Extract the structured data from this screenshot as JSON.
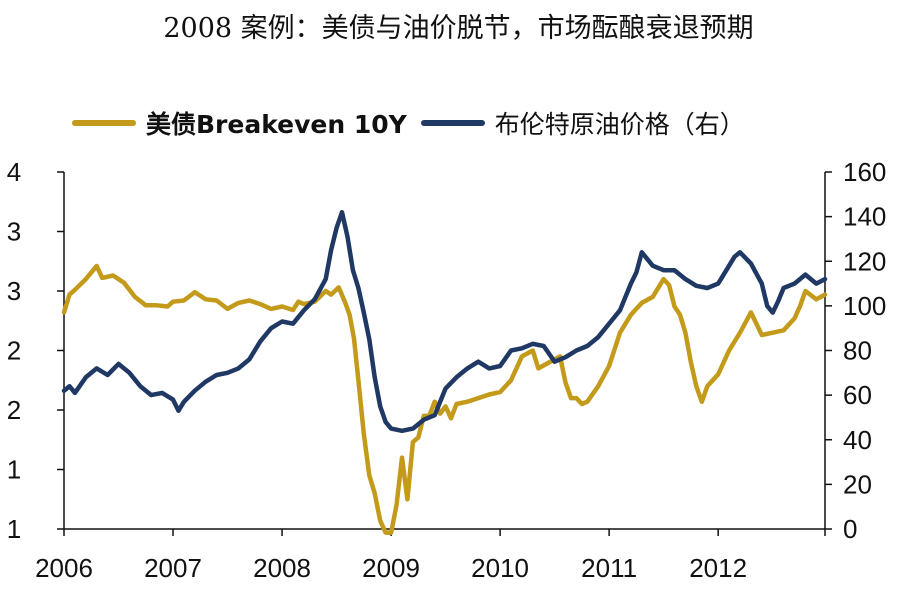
{
  "chart_data": {
    "type": "line",
    "title": "2008 案例：美债与油价脱节，市场酝酿衰退预期",
    "legend_position": "top",
    "x_ticks": [
      "2006",
      "2007",
      "2008",
      "2009",
      "2010",
      "2011",
      "2012"
    ],
    "x_range": [
      2006.0,
      2012.98
    ],
    "y_left": {
      "ticks": [
        "1",
        "1",
        "2",
        "2",
        "3",
        "3",
        "4"
      ],
      "range": [
        0.75,
        3.75
      ]
    },
    "y_right": {
      "ticks": [
        "0",
        "20",
        "40",
        "60",
        "80",
        "100",
        "120",
        "140",
        "160"
      ],
      "range": [
        0,
        160
      ]
    },
    "series": [
      {
        "name": "美债Breakeven 10Y",
        "axis": "left",
        "color": "#C49A1B",
        "x": [
          2006.0,
          2006.05,
          2006.1,
          2006.2,
          2006.3,
          2006.35,
          2006.45,
          2006.55,
          2006.65,
          2006.75,
          2006.85,
          2006.95,
          2007.0,
          2007.1,
          2007.2,
          2007.3,
          2007.4,
          2007.5,
          2007.6,
          2007.7,
          2007.8,
          2007.9,
          2008.0,
          2008.1,
          2008.15,
          2008.2,
          2008.3,
          2008.4,
          2008.45,
          2008.52,
          2008.58,
          2008.62,
          2008.66,
          2008.7,
          2008.75,
          2008.8,
          2008.85,
          2008.9,
          2008.95,
          2009.0,
          2009.05,
          2009.1,
          2009.15,
          2009.2,
          2009.25,
          2009.3,
          2009.35,
          2009.4,
          2009.45,
          2009.5,
          2009.55,
          2009.6,
          2009.7,
          2009.8,
          2009.9,
          2010.0,
          2010.1,
          2010.2,
          2010.3,
          2010.35,
          2010.45,
          2010.55,
          2010.6,
          2010.65,
          2010.7,
          2010.75,
          2010.8,
          2010.9,
          2011.0,
          2011.1,
          2011.2,
          2011.3,
          2011.4,
          2011.5,
          2011.55,
          2011.6,
          2011.65,
          2011.7,
          2011.75,
          2011.8,
          2011.85,
          2011.9,
          2012.0,
          2012.1,
          2012.2,
          2012.3,
          2012.4,
          2012.5,
          2012.6,
          2012.7,
          2012.75,
          2012.8,
          2012.9,
          2012.98
        ],
        "values": [
          2.57,
          2.72,
          2.76,
          2.85,
          2.96,
          2.86,
          2.88,
          2.82,
          2.7,
          2.63,
          2.63,
          2.62,
          2.66,
          2.67,
          2.74,
          2.68,
          2.67,
          2.6,
          2.65,
          2.67,
          2.64,
          2.6,
          2.62,
          2.59,
          2.66,
          2.64,
          2.66,
          2.75,
          2.72,
          2.78,
          2.65,
          2.55,
          2.35,
          2.0,
          1.55,
          1.2,
          1.05,
          0.82,
          0.72,
          0.72,
          0.95,
          1.35,
          1.0,
          1.48,
          1.52,
          1.7,
          1.7,
          1.82,
          1.72,
          1.78,
          1.68,
          1.8,
          1.82,
          1.85,
          1.88,
          1.9,
          2.0,
          2.2,
          2.25,
          2.1,
          2.15,
          2.2,
          1.98,
          1.85,
          1.85,
          1.8,
          1.82,
          1.95,
          2.12,
          2.4,
          2.55,
          2.65,
          2.7,
          2.85,
          2.8,
          2.62,
          2.55,
          2.4,
          2.15,
          1.95,
          1.82,
          1.95,
          2.05,
          2.25,
          2.4,
          2.57,
          2.38,
          2.4,
          2.42,
          2.52,
          2.62,
          2.75,
          2.68,
          2.72
        ]
      },
      {
        "name": "布伦特原油价格（右）",
        "axis": "right",
        "color": "#1F3864",
        "x": [
          2006.0,
          2006.05,
          2006.1,
          2006.2,
          2006.3,
          2006.4,
          2006.5,
          2006.6,
          2006.7,
          2006.8,
          2006.9,
          2007.0,
          2007.05,
          2007.1,
          2007.2,
          2007.3,
          2007.4,
          2007.5,
          2007.6,
          2007.7,
          2007.8,
          2007.9,
          2008.0,
          2008.1,
          2008.2,
          2008.3,
          2008.4,
          2008.45,
          2008.5,
          2008.55,
          2008.6,
          2008.65,
          2008.7,
          2008.75,
          2008.8,
          2008.85,
          2008.9,
          2008.95,
          2009.0,
          2009.1,
          2009.2,
          2009.3,
          2009.4,
          2009.5,
          2009.6,
          2009.7,
          2009.8,
          2009.9,
          2010.0,
          2010.1,
          2010.2,
          2010.3,
          2010.4,
          2010.5,
          2010.6,
          2010.7,
          2010.8,
          2010.9,
          2011.0,
          2011.1,
          2011.2,
          2011.25,
          2011.3,
          2011.4,
          2011.5,
          2011.6,
          2011.7,
          2011.8,
          2011.9,
          2012.0,
          2012.1,
          2012.15,
          2012.2,
          2012.3,
          2012.4,
          2012.45,
          2012.5,
          2012.55,
          2012.6,
          2012.7,
          2012.8,
          2012.9,
          2012.98
        ],
        "values": [
          62,
          64,
          61,
          68,
          72,
          69,
          74,
          70,
          64,
          60,
          61,
          58,
          53,
          57,
          62,
          66,
          69,
          70,
          72,
          76,
          84,
          90,
          93,
          92,
          98,
          103,
          112,
          125,
          135,
          142,
          131,
          116,
          108,
          97,
          85,
          68,
          55,
          48,
          45,
          44,
          45,
          49,
          51,
          63,
          68,
          72,
          75,
          72,
          73,
          80,
          81,
          83,
          82,
          75,
          77,
          80,
          82,
          86,
          92,
          98,
          110,
          115,
          124,
          118,
          116,
          116,
          112,
          109,
          108,
          110,
          118,
          122,
          124,
          119,
          110,
          100,
          97,
          102,
          108,
          110,
          114,
          110,
          112
        ]
      }
    ],
    "xlabel": "",
    "ylabel": ""
  }
}
